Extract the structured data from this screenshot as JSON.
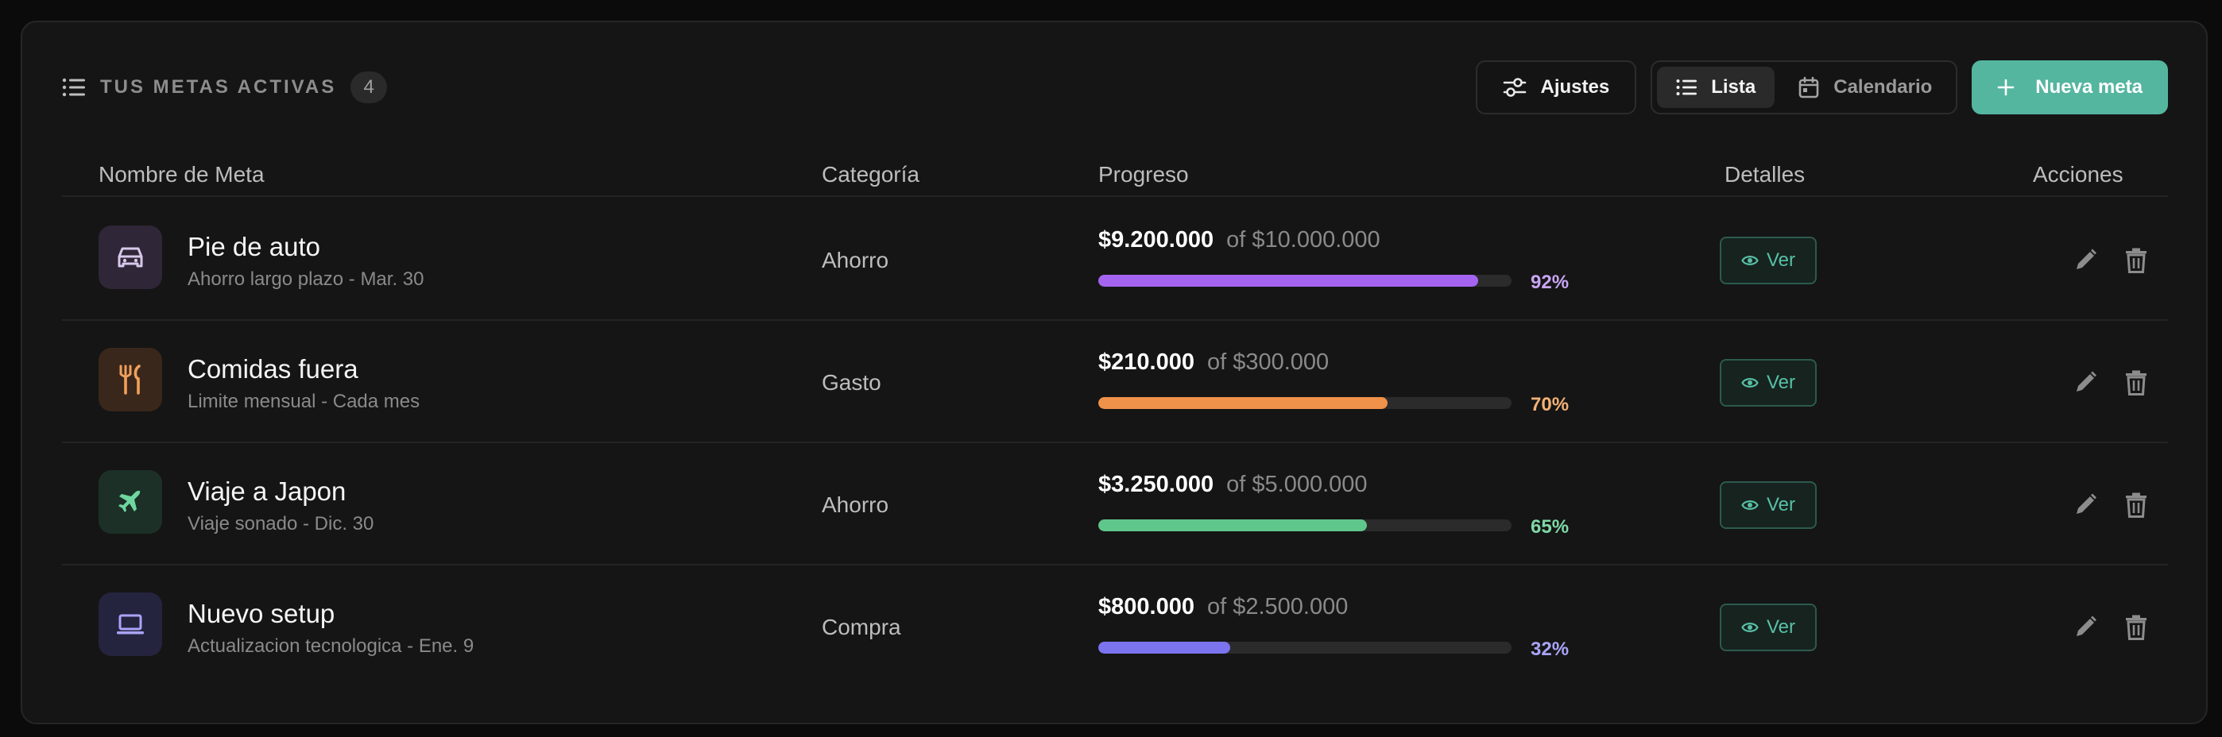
{
  "header": {
    "title": "TUS METAS ACTIVAS",
    "count": "4",
    "settings_label": "Ajustes",
    "view_list_label": "Lista",
    "view_calendar_label": "Calendario",
    "new_goal_label": "Nueva meta"
  },
  "table": {
    "columns": {
      "name": "Nombre de Meta",
      "category": "Categoría",
      "progress": "Progreso",
      "details": "Detalles",
      "actions": "Acciones"
    },
    "rows": [
      {
        "name": "Pie de auto",
        "subtitle": "Ahorro largo plazo - Mar. 30",
        "category": "Ahorro",
        "current": "$9.200.000",
        "target": "of $10.000.000",
        "percent_label": "92%",
        "progress": 0.92,
        "icon": "car-icon",
        "accent": "#a564f0",
        "icon_bg": "#2f2638",
        "icon_color": "#d7c9ea",
        "details_label": "Ver"
      },
      {
        "name": "Comidas fuera",
        "subtitle": "Limite mensual - Cada mes",
        "category": "Gasto",
        "current": "$210.000",
        "target": "of $300.000",
        "percent_label": "70%",
        "progress": 0.7,
        "icon": "utensils-icon",
        "accent": "#f0914a",
        "icon_bg": "#3a271b",
        "icon_color": "#f2a05a",
        "details_label": "Ver"
      },
      {
        "name": "Viaje a Japon",
        "subtitle": "Viaje sonado - Dic. 30",
        "category": "Ahorro",
        "current": "$3.250.000",
        "target": "of $5.000.000",
        "percent_label": "65%",
        "progress": 0.65,
        "icon": "airplane-icon",
        "accent": "#5fc68c",
        "icon_bg": "#1c3027",
        "icon_color": "#6fd6a0",
        "details_label": "Ver"
      },
      {
        "name": "Nuevo setup",
        "subtitle": "Actualizacion tecnologica - Ene. 9",
        "category": "Compra",
        "current": "$800.000",
        "target": "of $2.500.000",
        "percent_label": "32%",
        "progress": 0.32,
        "icon": "laptop-icon",
        "accent": "#7b74ee",
        "icon_bg": "#25243f",
        "icon_color": "#a9a4f8",
        "details_label": "Ver"
      }
    ]
  },
  "colors": {
    "accent": "#55b6a0",
    "pct_colors": [
      "#c9a5f5",
      "#f3b175",
      "#7fd9a6",
      "#a9a4f8"
    ]
  }
}
